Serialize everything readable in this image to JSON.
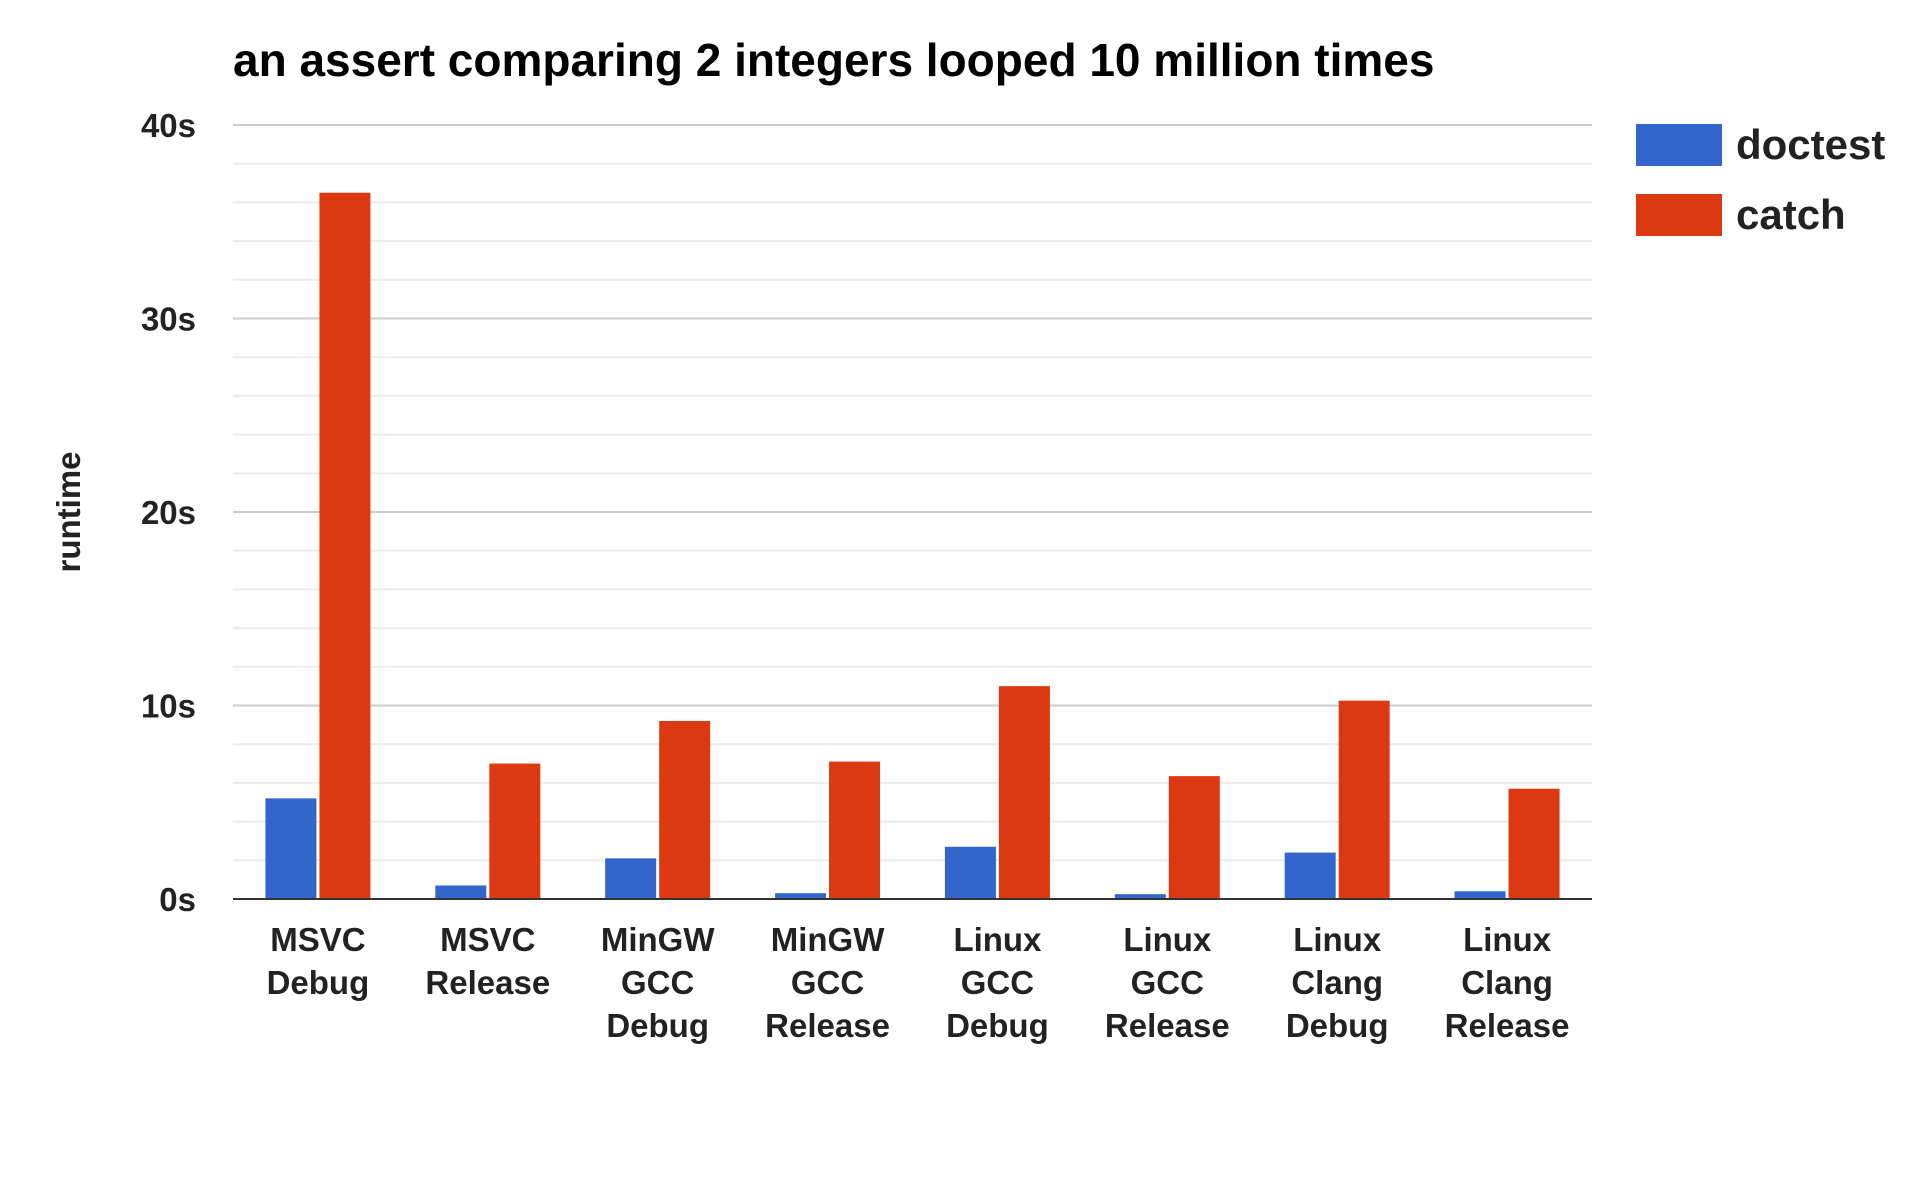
{
  "chart_data": {
    "type": "bar",
    "title": "an assert comparing 2 integers looped 10 million times",
    "xlabel": "",
    "ylabel": "runtime",
    "ylim": [
      0,
      40
    ],
    "y_ticks": [
      {
        "value": 0,
        "label": "0s"
      },
      {
        "value": 10,
        "label": "10s"
      },
      {
        "value": 20,
        "label": "20s"
      },
      {
        "value": 30,
        "label": "30s"
      },
      {
        "value": 40,
        "label": "40s"
      }
    ],
    "minor_gridlines_per_major": 5,
    "grid": true,
    "legend_position": "top-right",
    "categories": [
      [
        "MSVC",
        "Debug"
      ],
      [
        "MSVC",
        "Release"
      ],
      [
        "MinGW",
        "GCC",
        "Debug"
      ],
      [
        "MinGW",
        "GCC",
        "Release"
      ],
      [
        "Linux",
        "GCC",
        "Debug"
      ],
      [
        "Linux",
        "GCC",
        "Release"
      ],
      [
        "Linux",
        "Clang",
        "Debug"
      ],
      [
        "Linux",
        "Clang",
        "Release"
      ]
    ],
    "series": [
      {
        "name": "doctest",
        "color": "#3366cc",
        "values": [
          5.2,
          0.7,
          2.1,
          0.3,
          2.7,
          0.25,
          2.4,
          0.4
        ]
      },
      {
        "name": "catch",
        "color": "#dc3912",
        "values": [
          36.5,
          7.0,
          9.2,
          7.1,
          11.0,
          6.35,
          10.25,
          5.7
        ]
      }
    ]
  }
}
